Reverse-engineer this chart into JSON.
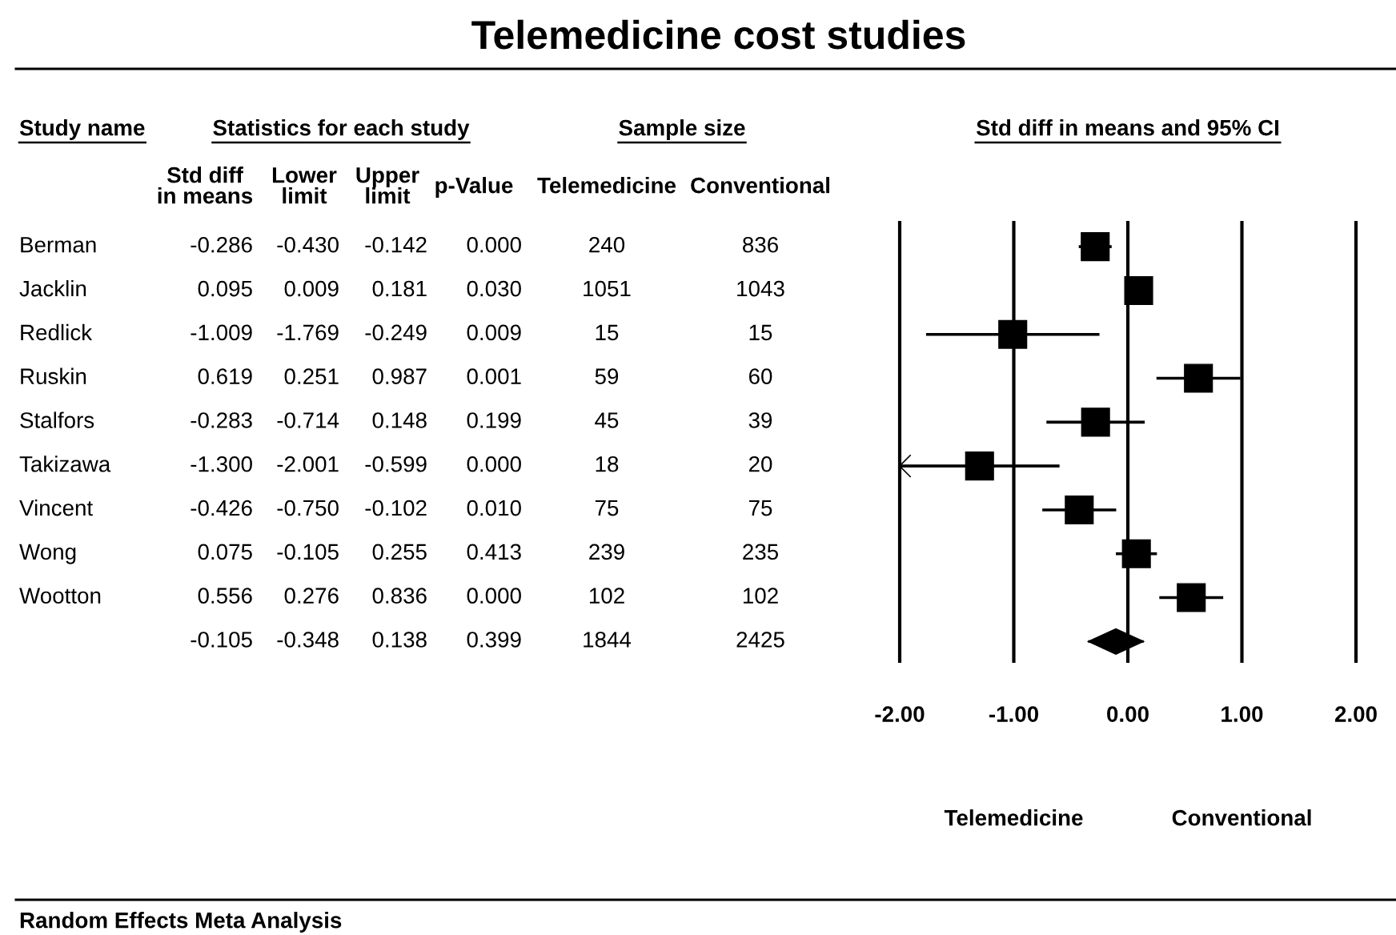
{
  "chart_data": [
    {
      "type": "other",
      "title": "Telemedicine cost studies",
      "categories": [
        "Std diff\nin means",
        "Lower\nlimit",
        "Upper\nlimit",
        "p-Value",
        "Telemedicine",
        "Conventional"
      ],
      "y_categories": [
        "Berman",
        "Jacklin",
        "Redlick",
        "Ruskin",
        "Stalfors",
        "Takizawa",
        "Vincent",
        "Wong",
        "Wootton",
        null
      ],
      "cell_labels": [
        [
          "-0.286",
          "-0.430",
          "-0.142",
          "0.000",
          "240",
          "836"
        ],
        [
          "0.095",
          "0.009",
          "0.181",
          "0.030",
          "1051",
          "1043"
        ],
        [
          "-1.009",
          "-1.769",
          "-0.249",
          "0.009",
          "15",
          "15"
        ],
        [
          "0.619",
          "0.251",
          "0.987",
          "0.001",
          "59",
          "60"
        ],
        [
          "-0.283",
          "-0.714",
          "0.148",
          "0.199",
          "45",
          "39"
        ],
        [
          "-1.300",
          "-2.001",
          "-0.599",
          "0.000",
          "18",
          "20"
        ],
        [
          "-0.426",
          "-0.750",
          "-0.102",
          "0.010",
          "75",
          "75"
        ],
        [
          "0.075",
          "-0.105",
          "0.255",
          "0.413",
          "239",
          "235"
        ],
        [
          "0.556",
          "0.276",
          "0.836",
          "0.000",
          "102",
          "102"
        ],
        [
          "-0.105",
          "-0.348",
          "0.138",
          "0.399",
          "1844",
          "2425"
        ]
      ],
      "annotations": [
        "Study name",
        "Statistics for each study",
        "Sample size",
        "Random Effects Meta Analysis"
      ]
    },
    {
      "type": "scatter",
      "title": "Std diff in means and 95% CI",
      "orientation": "horizontal",
      "categories": [
        null,
        null,
        null,
        null,
        null,
        null,
        null,
        null,
        null,
        null
      ],
      "xlim": [
        -2,
        2
      ],
      "xticks": [
        {
          "value": -2,
          "label": "-2.00"
        },
        {
          "value": -1,
          "label": "-1.00"
        },
        {
          "value": 0,
          "label": "0.00"
        },
        {
          "value": 1,
          "label": "1.00"
        },
        {
          "value": 2,
          "label": "2.00"
        }
      ],
      "grid": "x",
      "series": [
        {
          "marker": "square",
          "color": "#000000",
          "values": [
            -0.286,
            0.095,
            -1.009,
            0.619,
            -0.283,
            -1.3,
            -0.426,
            0.075,
            0.556,
            null
          ],
          "errors": [
            [
              -0.43,
              -0.142
            ],
            [
              0.009,
              0.181
            ],
            [
              -1.769,
              -0.249
            ],
            [
              0.251,
              0.987
            ],
            [
              -0.714,
              0.148
            ],
            [
              -2.001,
              -0.599
            ],
            [
              -0.75,
              -0.102
            ],
            [
              -0.105,
              0.255
            ],
            [
              0.276,
              0.836
            ],
            null
          ]
        },
        {
          "marker": "diamond",
          "color": "#000000",
          "values": [
            null,
            null,
            null,
            null,
            null,
            null,
            null,
            null,
            null,
            -0.105
          ],
          "errors": [
            null,
            null,
            null,
            null,
            null,
            null,
            null,
            null,
            null,
            [
              -0.348,
              0.138
            ]
          ]
        }
      ],
      "annotations": [
        "Telemedicine",
        "Conventional"
      ]
    }
  ]
}
